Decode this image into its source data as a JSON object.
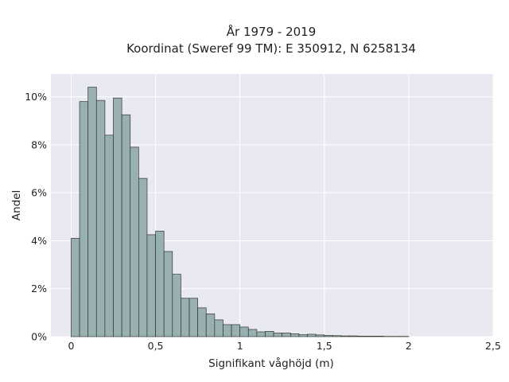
{
  "chart_data": {
    "type": "bar",
    "title": "År 1979 - 2019",
    "subtitle": "Koordinat (Sweref 99 TM): E 350912, N 6258134",
    "xlabel": "Signifikant våghöjd (m)",
    "ylabel": "Andel",
    "xlim": [
      -0.12,
      2.5
    ],
    "ylim": [
      0,
      10.95
    ],
    "bin_width": 0.05,
    "bin_start": 0,
    "values": [
      4.1,
      9.8,
      10.4,
      9.85,
      8.4,
      9.95,
      9.25,
      7.9,
      6.6,
      4.25,
      4.4,
      3.55,
      2.6,
      1.6,
      1.6,
      1.2,
      0.95,
      0.7,
      0.5,
      0.5,
      0.4,
      0.3,
      0.2,
      0.22,
      0.15,
      0.15,
      0.12,
      0.08,
      0.1,
      0.07,
      0.05,
      0.04,
      0.03,
      0.03,
      0.02,
      0.02,
      0.02,
      0.01,
      0.01,
      0.01
    ],
    "x_ticks": [
      0,
      0.5,
      1,
      1.5,
      2,
      2.5
    ],
    "x_tick_labels": [
      "0",
      "0,5",
      "1",
      "1,5",
      "2",
      "2,5"
    ],
    "y_ticks": [
      0,
      2,
      4,
      6,
      8,
      10
    ],
    "y_tick_labels": [
      "0%",
      "2%",
      "4%",
      "6%",
      "8%",
      "10%"
    ],
    "grid": true,
    "colors": {
      "bar_fill": "#98b1b0",
      "bar_stroke": "#333333",
      "plot_background": "#e9e9f1",
      "grid": "#ffffff"
    }
  }
}
